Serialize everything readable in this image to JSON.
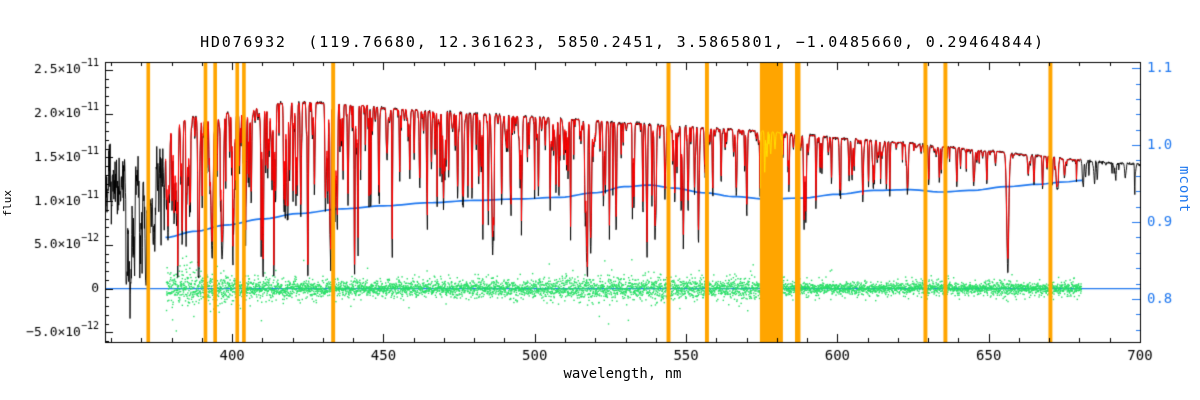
{
  "chart_data": {
    "type": "line",
    "title": "HD076932  (119.76680, 12.361623, 5850.2451, 3.5865801, −1.0485660, 0.29464844)",
    "xlabel": "wavelength, nm",
    "ylabel_left": "flux",
    "ylabel_right": "mcont",
    "grid": false,
    "legend": false,
    "x_range": [
      358,
      700
    ],
    "y_left_range": [
      -6.1e-12,
      2.59e-11
    ],
    "y_right_range": [
      0.744,
      1.108
    ],
    "x_ticks": [
      {
        "v": 400,
        "label": "400"
      },
      {
        "v": 450,
        "label": "450"
      },
      {
        "v": 500,
        "label": "500"
      },
      {
        "v": 550,
        "label": "550"
      },
      {
        "v": 600,
        "label": "600"
      },
      {
        "v": 650,
        "label": "650"
      },
      {
        "v": 700,
        "label": "700"
      }
    ],
    "x_minor_step": 10,
    "y_left_ticks": [
      {
        "v": 2.5e-11,
        "m": "2.5×10",
        "e": "−11"
      },
      {
        "v": 2e-11,
        "m": "2.0×10",
        "e": "−11"
      },
      {
        "v": 1.5e-11,
        "m": "1.5×10",
        "e": "−11"
      },
      {
        "v": 1e-11,
        "m": "1.0×10",
        "e": "−11"
      },
      {
        "v": 5e-12,
        "m": "5.0×10",
        "e": "−12"
      },
      {
        "v": 0,
        "m": "0",
        "e": ""
      },
      {
        "v": -5e-12,
        "m": "−5.0×10",
        "e": "−12"
      }
    ],
    "y_left_minor_step": 1e-12,
    "y_right_ticks": [
      {
        "v": 1.1,
        "label": "1.1"
      },
      {
        "v": 1.0,
        "label": "1.0"
      },
      {
        "v": 0.9,
        "label": "0.9"
      },
      {
        "v": 0.8,
        "label": "0.8"
      }
    ],
    "y_right_minor_step": 0.02,
    "colors": {
      "background": "#ffffff",
      "axis": "#000000",
      "observed": "#000000",
      "model": "#ff0000",
      "continuum_fit": "#1f78f0",
      "right_axis_text": "#1f78f0",
      "residual": "#2bdf68",
      "masked_band": "#ffa500",
      "masked_spectrum": "#ffdf00"
    },
    "series": [
      {
        "name": "observed spectrum",
        "color": "#000000",
        "axis": "left",
        "x_range_nm": [
          358,
          700
        ]
      },
      {
        "name": "model spectrum",
        "color": "#ff0000",
        "axis": "left",
        "x_range_nm": [
          378,
          680.5
        ]
      },
      {
        "name": "normalized continuum mcont",
        "color": "#1f78f0",
        "axis": "right",
        "points_key": "mcont_points"
      },
      {
        "name": "residuals around zero",
        "color": "#2bdf68",
        "axis": "left",
        "zero_level": 0
      },
      {
        "name": "masked wavelength bands",
        "color": "#ffa500",
        "bands_key": "masked_bands_nm"
      }
    ],
    "observed_range_nm": [
      358,
      700
    ],
    "model_range_nm": [
      378,
      680.5
    ],
    "residual_range_nm": [
      378.3,
      680.7
    ],
    "residual_zero_line": 0,
    "continuum_points": [
      [
        358,
        1.15e-11
      ],
      [
        362,
        1.2e-11
      ],
      [
        366,
        1.28e-11
      ],
      [
        370,
        1.38e-11
      ],
      [
        374,
        1.55e-11
      ],
      [
        377,
        1.68e-11
      ],
      [
        379,
        1.82e-11
      ],
      [
        383,
        1.92e-11
      ],
      [
        388,
        1.97e-11
      ],
      [
        394,
        1.93e-11
      ],
      [
        400,
        2.02e-11
      ],
      [
        406,
        2.06e-11
      ],
      [
        412,
        2.1e-11
      ],
      [
        420,
        2.13e-11
      ],
      [
        430,
        2.12e-11
      ],
      [
        442,
        2.09e-11
      ],
      [
        455,
        2.05e-11
      ],
      [
        470,
        2.02e-11
      ],
      [
        485,
        1.99e-11
      ],
      [
        500,
        1.96e-11
      ],
      [
        515,
        1.93e-11
      ],
      [
        530,
        1.89e-11
      ],
      [
        545,
        1.86e-11
      ],
      [
        560,
        1.83e-11
      ],
      [
        575,
        1.8e-11
      ],
      [
        590,
        1.75e-11
      ],
      [
        605,
        1.71e-11
      ],
      [
        620,
        1.67e-11
      ],
      [
        635,
        1.62e-11
      ],
      [
        650,
        1.57e-11
      ],
      [
        665,
        1.52e-11
      ],
      [
        680,
        1.47e-11
      ],
      [
        690,
        1.44e-11
      ],
      [
        700,
        1.42e-11
      ]
    ],
    "mcont_points": [
      [
        378,
        0.88
      ],
      [
        388,
        0.888
      ],
      [
        398,
        0.896
      ],
      [
        410,
        0.904
      ],
      [
        422,
        0.911
      ],
      [
        436,
        0.917
      ],
      [
        450,
        0.921
      ],
      [
        465,
        0.925
      ],
      [
        480,
        0.928
      ],
      [
        495,
        0.93
      ],
      [
        508,
        0.932
      ],
      [
        520,
        0.938
      ],
      [
        530,
        0.946
      ],
      [
        538,
        0.948
      ],
      [
        546,
        0.944
      ],
      [
        556,
        0.938
      ],
      [
        566,
        0.933
      ],
      [
        576,
        0.93
      ],
      [
        588,
        0.931
      ],
      [
        600,
        0.936
      ],
      [
        612,
        0.941
      ],
      [
        624,
        0.942
      ],
      [
        634,
        0.939
      ],
      [
        644,
        0.941
      ],
      [
        656,
        0.946
      ],
      [
        666,
        0.949
      ],
      [
        675,
        0.952
      ],
      [
        681,
        0.954
      ]
    ],
    "residual_envelope": [
      [
        378,
        2.6e-12
      ],
      [
        384,
        2.3e-12
      ],
      [
        392,
        2e-12
      ],
      [
        400,
        1.6e-12
      ],
      [
        410,
        1.3e-12
      ],
      [
        425,
        1.1e-12
      ],
      [
        440,
        1e-12
      ],
      [
        455,
        9.5e-13
      ],
      [
        470,
        1e-12
      ],
      [
        485,
        1.15e-12
      ],
      [
        500,
        1.2e-12
      ],
      [
        515,
        1.5e-12
      ],
      [
        525,
        1.35e-12
      ],
      [
        535,
        1.3e-12
      ],
      [
        545,
        1.9e-12
      ],
      [
        552,
        1.3e-12
      ],
      [
        560,
        1.25e-12
      ],
      [
        570,
        1.4e-12
      ],
      [
        578,
        1.5e-12
      ],
      [
        586,
        1e-12
      ],
      [
        595,
        8.5e-13
      ],
      [
        605,
        8e-13
      ],
      [
        615,
        7.5e-13
      ],
      [
        628,
        8.5e-13
      ],
      [
        638,
        7.5e-13
      ],
      [
        648,
        7e-13
      ],
      [
        656,
        1.1e-12
      ],
      [
        664,
        7.5e-13
      ],
      [
        672,
        8e-13
      ],
      [
        681,
        8.5e-13
      ]
    ],
    "strong_lines": [
      {
        "nm": 382.0,
        "depth": 0.5,
        "w": 0.3
      },
      {
        "nm": 383.5,
        "depth": 0.55,
        "w": 0.3
      },
      {
        "nm": 385.0,
        "depth": 0.45,
        "w": 0.25
      },
      {
        "nm": 388.9,
        "depth": 0.6,
        "w": 0.35
      },
      {
        "nm": 393.4,
        "depth": 0.82,
        "w": 0.45
      },
      {
        "nm": 396.8,
        "depth": 0.78,
        "w": 0.45
      },
      {
        "nm": 404.6,
        "depth": 0.52,
        "w": 0.22
      },
      {
        "nm": 406.3,
        "depth": 0.45,
        "w": 0.2
      },
      {
        "nm": 410.2,
        "depth": 0.65,
        "w": 0.3
      },
      {
        "nm": 413.2,
        "depth": 0.45,
        "w": 0.2
      },
      {
        "nm": 414.4,
        "depth": 0.5,
        "w": 0.22
      },
      {
        "nm": 417.2,
        "depth": 0.4,
        "w": 0.2
      },
      {
        "nm": 420.2,
        "depth": 0.45,
        "w": 0.2
      },
      {
        "nm": 422.7,
        "depth": 0.62,
        "w": 0.25
      },
      {
        "nm": 425.0,
        "depth": 0.45,
        "w": 0.2
      },
      {
        "nm": 427.2,
        "depth": 0.5,
        "w": 0.2
      },
      {
        "nm": 430.8,
        "depth": 0.52,
        "w": 0.22
      },
      {
        "nm": 432.6,
        "depth": 0.5,
        "w": 0.2
      },
      {
        "nm": 434.0,
        "depth": 0.62,
        "w": 0.3
      },
      {
        "nm": 438.3,
        "depth": 0.55,
        "w": 0.25
      },
      {
        "nm": 440.5,
        "depth": 0.48,
        "w": 0.2
      },
      {
        "nm": 441.5,
        "depth": 0.42,
        "w": 0.2
      },
      {
        "nm": 452.9,
        "depth": 0.42,
        "w": 0.2
      },
      {
        "nm": 455.4,
        "depth": 0.4,
        "w": 0.2
      },
      {
        "nm": 458.7,
        "depth": 0.35,
        "w": 0.2
      },
      {
        "nm": 462.0,
        "depth": 0.35,
        "w": 0.2
      },
      {
        "nm": 470.3,
        "depth": 0.38,
        "w": 0.2
      },
      {
        "nm": 476.3,
        "depth": 0.35,
        "w": 0.2
      },
      {
        "nm": 481.5,
        "depth": 0.38,
        "w": 0.2
      },
      {
        "nm": 486.1,
        "depth": 0.8,
        "w": 0.4
      },
      {
        "nm": 489.1,
        "depth": 0.5,
        "w": 0.22
      },
      {
        "nm": 492.0,
        "depth": 0.45,
        "w": 0.22
      },
      {
        "nm": 495.7,
        "depth": 0.4,
        "w": 0.2
      },
      {
        "nm": 501.2,
        "depth": 0.4,
        "w": 0.2
      },
      {
        "nm": 508.0,
        "depth": 0.38,
        "w": 0.2
      },
      {
        "nm": 511.0,
        "depth": 0.35,
        "w": 0.2
      },
      {
        "nm": 516.7,
        "depth": 0.62,
        "w": 0.28
      },
      {
        "nm": 517.3,
        "depth": 0.68,
        "w": 0.28
      },
      {
        "nm": 518.4,
        "depth": 0.62,
        "w": 0.28
      },
      {
        "nm": 522.7,
        "depth": 0.5,
        "w": 0.22
      },
      {
        "nm": 526.9,
        "depth": 0.66,
        "w": 0.25
      },
      {
        "nm": 532.8,
        "depth": 0.52,
        "w": 0.22
      },
      {
        "nm": 537.1,
        "depth": 0.48,
        "w": 0.22
      },
      {
        "nm": 539.7,
        "depth": 0.4,
        "w": 0.2
      },
      {
        "nm": 543.0,
        "depth": 0.42,
        "w": 0.2
      },
      {
        "nm": 546.3,
        "depth": 0.45,
        "w": 0.2
      },
      {
        "nm": 552.8,
        "depth": 0.42,
        "w": 0.2
      },
      {
        "nm": 558.8,
        "depth": 0.4,
        "w": 0.2
      },
      {
        "nm": 561.6,
        "depth": 0.35,
        "w": 0.2
      },
      {
        "nm": 570.0,
        "depth": 0.3,
        "w": 0.2
      },
      {
        "nm": 576.0,
        "depth": 0.3,
        "w": 0.2
      },
      {
        "nm": 588.995,
        "depth": 0.62,
        "w": 0.25
      },
      {
        "nm": 589.592,
        "depth": 0.55,
        "w": 0.25
      },
      {
        "nm": 593.0,
        "depth": 0.3,
        "w": 0.2
      },
      {
        "nm": 610.3,
        "depth": 0.32,
        "w": 0.2
      },
      {
        "nm": 612.2,
        "depth": 0.3,
        "w": 0.2
      },
      {
        "nm": 616.2,
        "depth": 0.33,
        "w": 0.2
      },
      {
        "nm": 623.1,
        "depth": 0.3,
        "w": 0.2
      },
      {
        "nm": 630.2,
        "depth": 0.28,
        "w": 0.2
      },
      {
        "nm": 633.7,
        "depth": 0.25,
        "w": 0.2
      },
      {
        "nm": 645.0,
        "depth": 0.22,
        "w": 0.2
      },
      {
        "nm": 649.4,
        "depth": 0.25,
        "w": 0.2
      },
      {
        "nm": 656.28,
        "depth": 0.8,
        "w": 0.5
      },
      {
        "nm": 667.8,
        "depth": 0.25,
        "w": 0.2
      },
      {
        "nm": 671.0,
        "depth": 0.22,
        "w": 0.2
      }
    ],
    "masked_bands_nm": [
      {
        "c": 372.3,
        "w": 1.2
      },
      {
        "c": 391.2,
        "w": 1.2
      },
      {
        "c": 394.4,
        "w": 1.2
      },
      {
        "c": 401.7,
        "w": 1.2
      },
      {
        "c": 403.9,
        "w": 1.2
      },
      {
        "c": 433.4,
        "w": 1.3
      },
      {
        "c": 544.2,
        "w": 1.3
      },
      {
        "c": 556.9,
        "w": 1.3
      },
      {
        "c": 578.2,
        "w": 7.6
      },
      {
        "c": 586.9,
        "w": 1.8
      },
      {
        "c": 629.1,
        "w": 1.3
      },
      {
        "c": 635.7,
        "w": 1.3
      },
      {
        "c": 670.4,
        "w": 1.3
      }
    ]
  }
}
